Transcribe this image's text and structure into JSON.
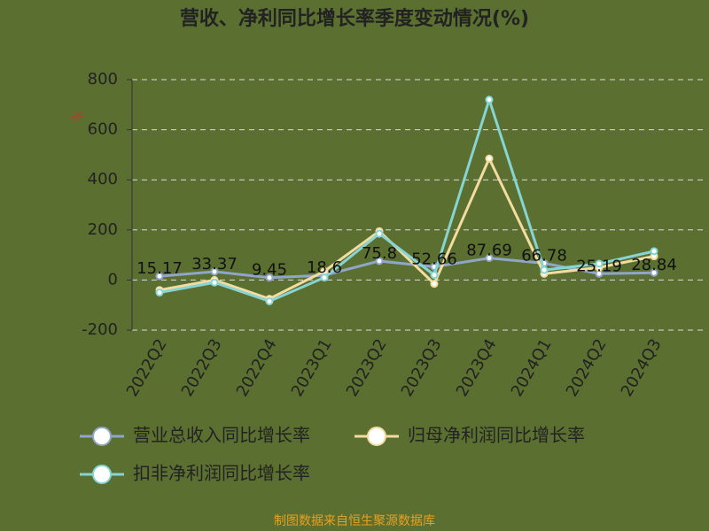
{
  "chart_data": {
    "type": "line",
    "title": "营收、净利同比增长率季度变动情况(%)",
    "y_label": "%",
    "footer": "制图数据来自恒生聚源数据库",
    "categories": [
      "2022Q2",
      "2022Q3",
      "2022Q4",
      "2023Q1",
      "2023Q2",
      "2023Q3",
      "2023Q4",
      "2024Q1",
      "2024Q2",
      "2024Q3"
    ],
    "series": [
      {
        "name": "营业总收入同比增长率",
        "color": "#8fa6c8",
        "values": [
          15.17,
          33.37,
          9.45,
          18.6,
          75.8,
          52.66,
          87.69,
          66.78,
          25.19,
          28.84
        ],
        "show_labels": true
      },
      {
        "name": "归母净利润同比增长率",
        "color": "#f3dca0",
        "values": [
          -40,
          0,
          -75,
          35,
          195,
          -15,
          485,
          25,
          50,
          95
        ],
        "show_labels": false
      },
      {
        "name": "扣非净利润同比增长率",
        "color": "#86d4d4",
        "values": [
          -50,
          -10,
          -85,
          10,
          185,
          20,
          720,
          40,
          65,
          115
        ],
        "show_labels": false
      }
    ],
    "ylim": [
      -200,
      800
    ],
    "yticks": [
      -200,
      0,
      200,
      400,
      600,
      800
    ],
    "grid": true,
    "legend": "bottom"
  }
}
